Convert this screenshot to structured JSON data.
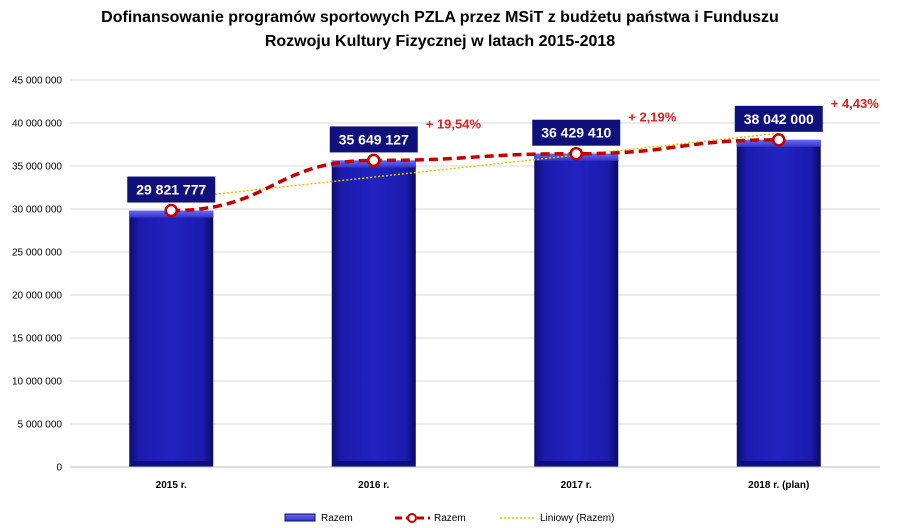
{
  "chart_data": {
    "type": "bar",
    "title_line1": "Dofinansowanie programów sportowych PZLA przez MSiT z budżetu państwa i Funduszu",
    "title_line2": "Rozwoju Kultury Fizycznej  w latach 2015-2018",
    "categories": [
      "2015 r.",
      "2016 r.",
      "2017 r.",
      "2018 r. (plan)"
    ],
    "values": [
      29821777,
      35649127,
      36429410,
      38042000
    ],
    "value_labels": [
      "29 821 777",
      "35 649 127",
      "36 429 410",
      "38 042 000"
    ],
    "change_labels": [
      "",
      "+ 19,54%",
      "+ 2,19%",
      "+ 4,43%"
    ],
    "ylim": [
      0,
      45000000
    ],
    "yticks": [
      0,
      5000000,
      10000000,
      15000000,
      20000000,
      25000000,
      30000000,
      35000000,
      40000000,
      45000000
    ],
    "ytick_labels": [
      "0",
      "5 000 000",
      "10 000 000",
      "15 000 000",
      "20 000 000",
      "25 000 000",
      "30 000 000",
      "35 000 000",
      "40 000 000",
      "45 000 000"
    ],
    "grid": true,
    "legend_position": "bottom",
    "series": [
      {
        "name": "Razem",
        "kind": "bar",
        "color": "#1a1a9e"
      },
      {
        "name": "Razem",
        "kind": "line",
        "color": "#c00000"
      },
      {
        "name": "Liniowy (Razem)",
        "kind": "trendline",
        "color": "#e6c200"
      }
    ]
  }
}
